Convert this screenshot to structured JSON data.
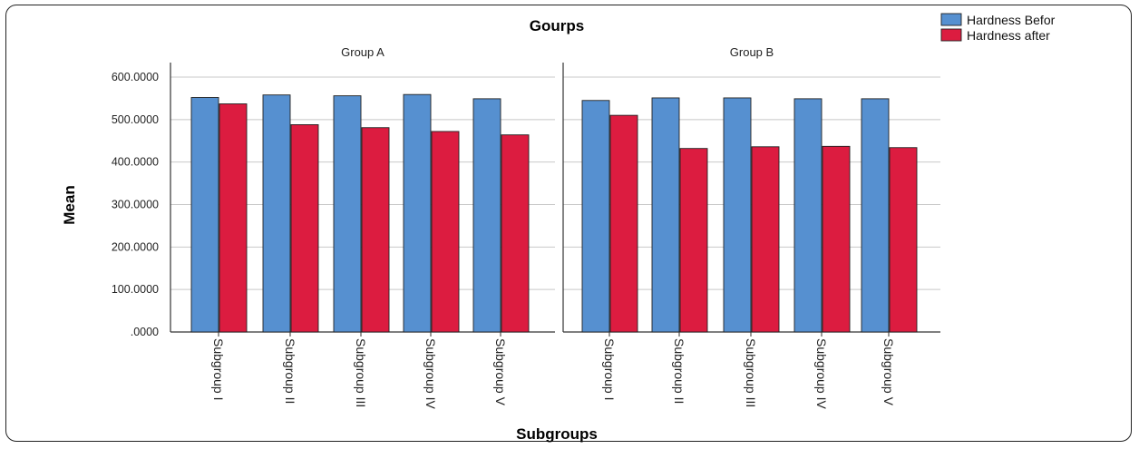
{
  "chart_data": {
    "type": "bar",
    "title": "Gourps",
    "xlabel": "Subgroups",
    "ylabel": "Mean",
    "ylim": [
      0,
      600
    ],
    "yticks": [
      ".0000",
      "100.0000",
      "200.0000",
      "300.0000",
      "400.0000",
      "500.0000",
      "600.0000"
    ],
    "yticks_values": [
      0,
      100,
      200,
      300,
      400,
      500,
      600
    ],
    "grid": true,
    "legend_position": "top-right",
    "categories": [
      "Subgroup I",
      "Subgroup II",
      "Subgroup III",
      "Subgroup IV",
      "Subgroup V"
    ],
    "series_colors": [
      "#5690d0",
      "#dc1c40"
    ],
    "panels": [
      {
        "title": "Group A",
        "series": [
          {
            "name": "Hardness Befor",
            "values": [
              552,
              558,
              556,
              559,
              549
            ]
          },
          {
            "name": "Hardness after",
            "values": [
              537,
              488,
              481,
              472,
              464
            ]
          }
        ]
      },
      {
        "title": "Group B",
        "series": [
          {
            "name": "Hardness Befor",
            "values": [
              545,
              551,
              551,
              549,
              549
            ]
          },
          {
            "name": "Hardness after",
            "values": [
              510,
              432,
              436,
              437,
              434
            ]
          }
        ]
      }
    ]
  }
}
